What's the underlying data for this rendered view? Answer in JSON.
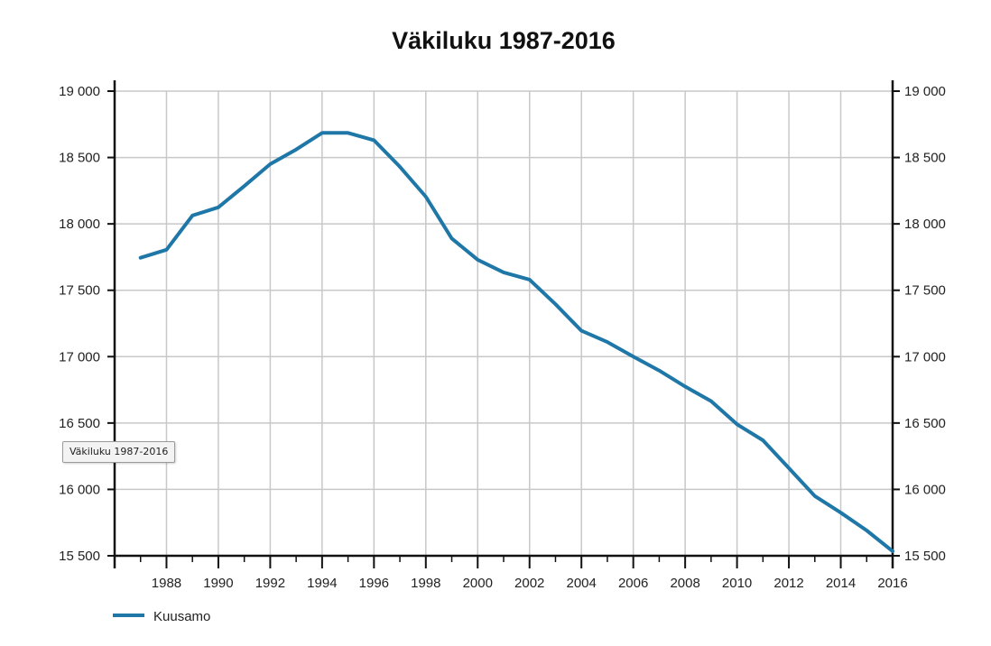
{
  "chart_data": {
    "type": "line",
    "title": "Väkiluku 1987-2016",
    "xlabel": "",
    "ylabel": "",
    "x": [
      1987,
      1988,
      1989,
      1990,
      1991,
      1992,
      1993,
      1994,
      1995,
      1996,
      1997,
      1998,
      1999,
      2000,
      2001,
      2002,
      2003,
      2004,
      2005,
      2006,
      2007,
      2008,
      2009,
      2010,
      2011,
      2012,
      2013,
      2014,
      2015,
      2016
    ],
    "xlim": [
      1986,
      2016
    ],
    "x_ticks": [
      "1988",
      "1990",
      "1992",
      "1994",
      "1996",
      "1998",
      "2000",
      "2002",
      "2004",
      "2006",
      "2008",
      "2010",
      "2012",
      "2014",
      "2016"
    ],
    "ylim": [
      15500,
      19000
    ],
    "y_ticks": [
      "15 500",
      "16 000",
      "16 500",
      "17 000",
      "17 500",
      "18 000",
      "18 500",
      "19 000"
    ],
    "y_axis_right": true,
    "grid": true,
    "series": [
      {
        "name": "Kuusamo",
        "color": "#1f77a8",
        "values": [
          17745,
          17805,
          18063,
          18125,
          18285,
          18450,
          18560,
          18685,
          18685,
          18630,
          18430,
          18205,
          17890,
          17730,
          17635,
          17580,
          17395,
          17195,
          17110,
          17000,
          16895,
          16775,
          16665,
          16490,
          16370,
          16160,
          15950,
          15825,
          15690,
          15535
        ]
      }
    ],
    "legend_position": "bottom-left"
  },
  "tooltip": {
    "text": "Väkiluku 1987-2016"
  }
}
